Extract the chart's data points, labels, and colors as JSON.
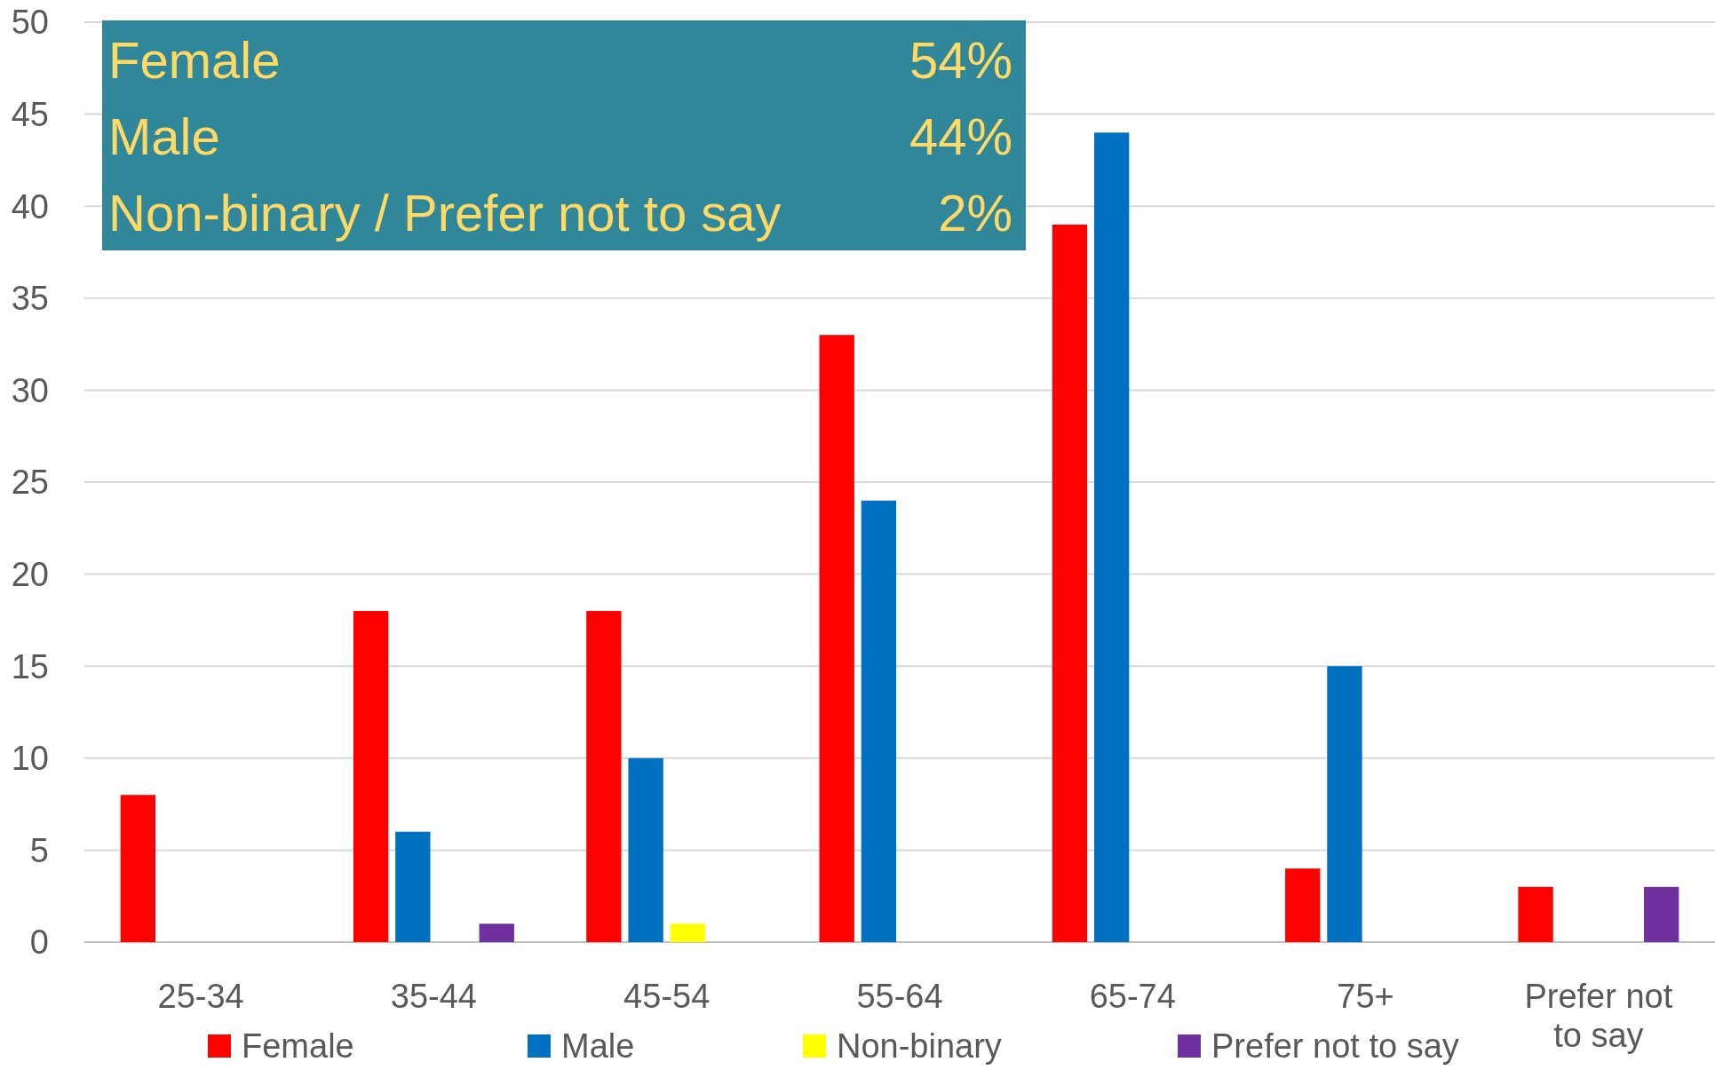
{
  "chart_data": {
    "type": "bar",
    "categories": [
      "25-34",
      "35-44",
      "45-54",
      "55-64",
      "65-74",
      "75+",
      "Prefer not to say"
    ],
    "series": [
      {
        "name": "Female",
        "color": "#ff0000",
        "values": [
          8,
          18,
          18,
          33,
          39,
          4,
          3
        ]
      },
      {
        "name": "Male",
        "color": "#0070c0",
        "values": [
          0,
          6,
          10,
          24,
          44,
          15,
          0
        ]
      },
      {
        "name": "Non-binary",
        "color": "#ffff00",
        "values": [
          0,
          0,
          1,
          0,
          0,
          0,
          0
        ]
      },
      {
        "name": "Prefer not to say",
        "color": "#7030a0",
        "values": [
          0,
          1,
          0,
          0,
          0,
          0,
          3
        ]
      }
    ],
    "ylim": [
      0,
      50
    ],
    "yticks": [
      0,
      5,
      10,
      15,
      20,
      25,
      30,
      35,
      40,
      45,
      50
    ],
    "grid": "y",
    "legend": "bottom",
    "annotations": [
      "Female",
      "54%",
      "Male",
      "44%",
      "Non-binary / Prefer not to say",
      "2%"
    ]
  }
}
